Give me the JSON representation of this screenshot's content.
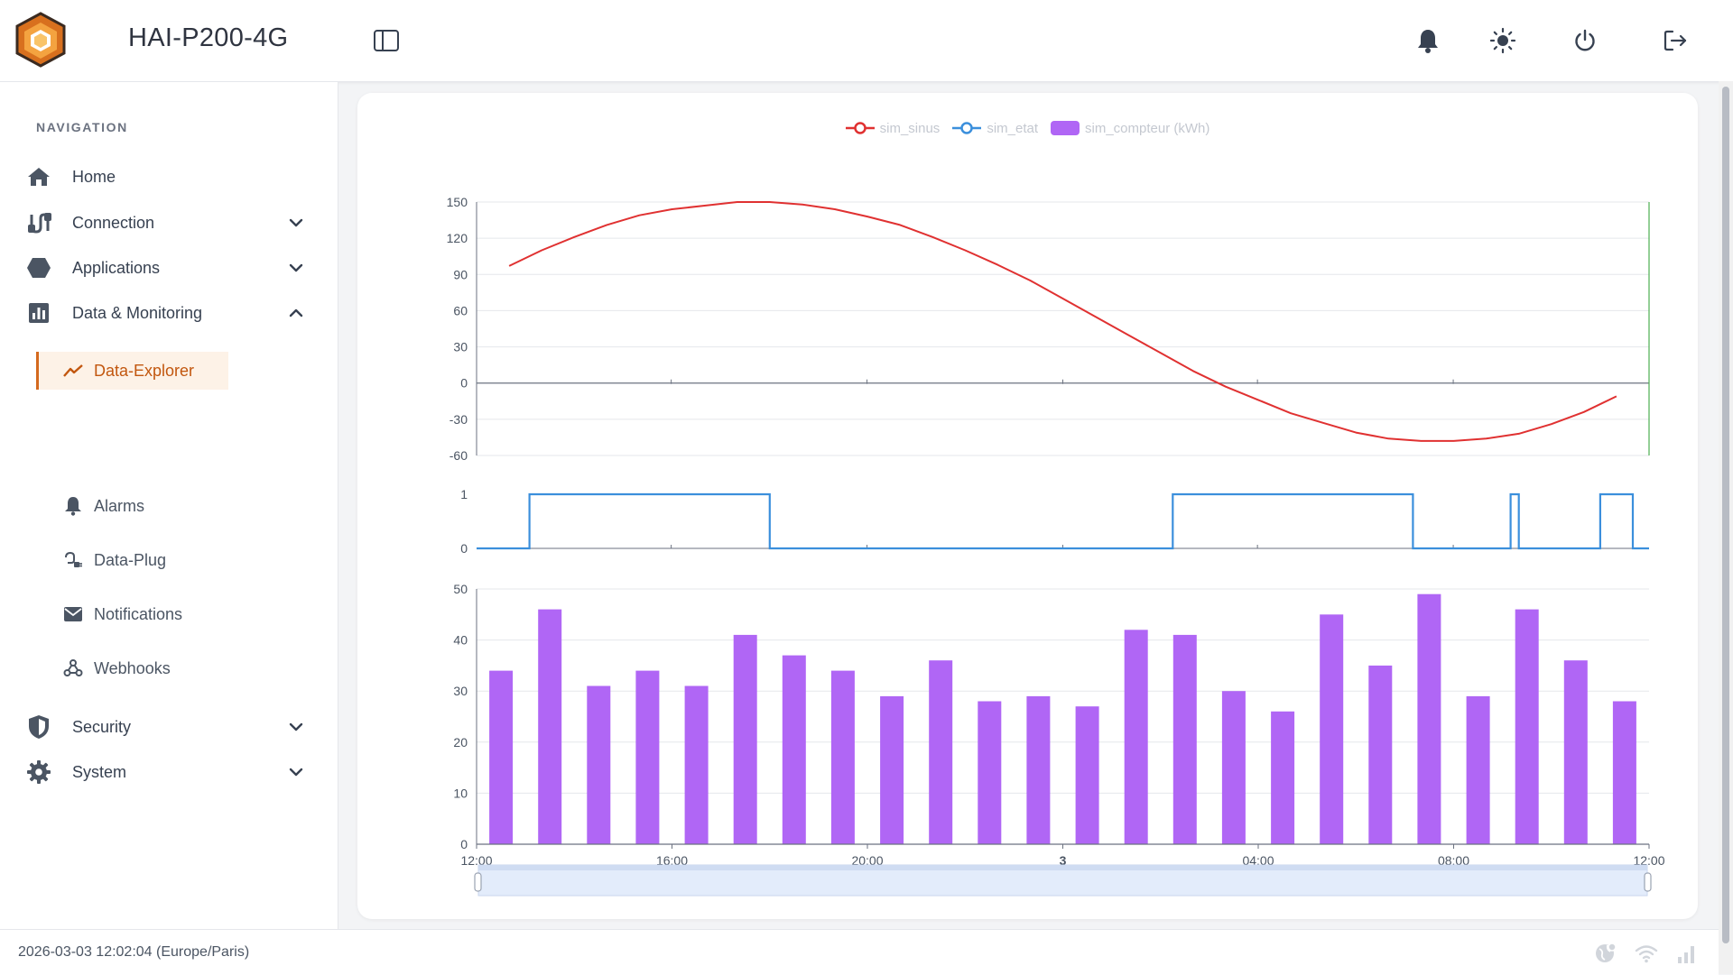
{
  "header": {
    "title": "HAI-P200-4G",
    "icons": [
      "sidebar-toggle-icon",
      "bell-icon",
      "sun-icon",
      "power-icon",
      "logout-icon"
    ]
  },
  "sidebar": {
    "section_label": "NAVIGATION",
    "items": [
      {
        "label": "Home",
        "icon": "home-icon"
      },
      {
        "label": "Connection",
        "icon": "connection-icon"
      },
      {
        "label": "Applications",
        "icon": "hexagon-icon"
      },
      {
        "label": "Data & Monitoring",
        "icon": "chart-icon"
      }
    ],
    "sub_items": [
      {
        "label": "Data-Explorer",
        "icon": "trend-icon"
      },
      {
        "label": "Alarms",
        "icon": "bell-icon"
      },
      {
        "label": "Data-Plug",
        "icon": "plug-icon"
      },
      {
        "label": "Notifications",
        "icon": "mail-icon"
      },
      {
        "label": "Webhooks",
        "icon": "webhook-icon"
      }
    ],
    "bottom_items": [
      {
        "label": "Security",
        "icon": "shield-icon"
      },
      {
        "label": "System",
        "icon": "gear-icon"
      }
    ]
  },
  "status": {
    "datetime": "2026-03-03 12:02:04 (Europe/Paris)"
  },
  "colors": {
    "accent": "#d4691e",
    "sinus": "#e03131",
    "etat": "#3b8fdc",
    "compteur": "#b066f5"
  },
  "chart_data": [
    {
      "type": "line",
      "series": [
        {
          "name": "sim_sinus",
          "x": [
            "12:40",
            "13:20",
            "14:00",
            "14:40",
            "15:20",
            "16:00",
            "16:40",
            "17:20",
            "18:00",
            "18:40",
            "19:20",
            "20:00",
            "20:40",
            "21:20",
            "22:00",
            "22:40",
            "23:20",
            "00:00",
            "00:40",
            "01:20",
            "02:00",
            "02:40",
            "03:20",
            "04:00",
            "04:40",
            "05:20",
            "06:00",
            "06:40",
            "07:20",
            "08:00",
            "08:40",
            "09:20",
            "10:00",
            "10:40",
            "11:20"
          ],
          "values": [
            97,
            110,
            121,
            131,
            139,
            144,
            147,
            150,
            150,
            148,
            144,
            138,
            131,
            121,
            110,
            98,
            85,
            70,
            55,
            40,
            25,
            10,
            -3,
            -14,
            -25,
            -33,
            -41,
            -46,
            -48,
            -48,
            -46,
            -42,
            -34,
            -24,
            -11
          ]
        }
      ],
      "ylim": [
        -60,
        150
      ],
      "yticks": [
        "150",
        "120",
        "90",
        "60",
        "30",
        "0",
        "-30",
        "-60"
      ]
    },
    {
      "type": "line",
      "series": [
        {
          "name": "sim_etat",
          "segments": [
            {
              "from": "12:00",
              "to": "13:05",
              "value": 0
            },
            {
              "from": "13:05",
              "to": "18:00",
              "value": 1
            },
            {
              "from": "18:00",
              "to": "02:15",
              "value": 0
            },
            {
              "from": "02:15",
              "to": "07:10",
              "value": 1
            },
            {
              "from": "07:10",
              "to": "09:10",
              "value": 0
            },
            {
              "from": "09:10",
              "to": "09:20",
              "value": 1
            },
            {
              "from": "09:20",
              "to": "11:00",
              "value": 0
            },
            {
              "from": "11:00",
              "to": "11:40",
              "value": 1
            },
            {
              "from": "11:40",
              "to": "12:00",
              "value": 0
            }
          ]
        }
      ],
      "ylim": [
        0,
        1
      ],
      "yticks": [
        "1",
        "0"
      ]
    },
    {
      "type": "bar",
      "series": [
        {
          "name": "sim_compteur (kWh)",
          "values": [
            34,
            46,
            31,
            34,
            31,
            41,
            37,
            34,
            29,
            36,
            28,
            29,
            27,
            42,
            41,
            30,
            26,
            45,
            35,
            49,
            29,
            46,
            36,
            28
          ]
        }
      ],
      "ylim": [
        0,
        50
      ],
      "yticks": [
        "50",
        "40",
        "30",
        "20",
        "10",
        "0"
      ],
      "xticks": [
        "12:00",
        "16:00",
        "20:00",
        "3",
        "04:00",
        "08:00",
        "12:00"
      ]
    }
  ]
}
